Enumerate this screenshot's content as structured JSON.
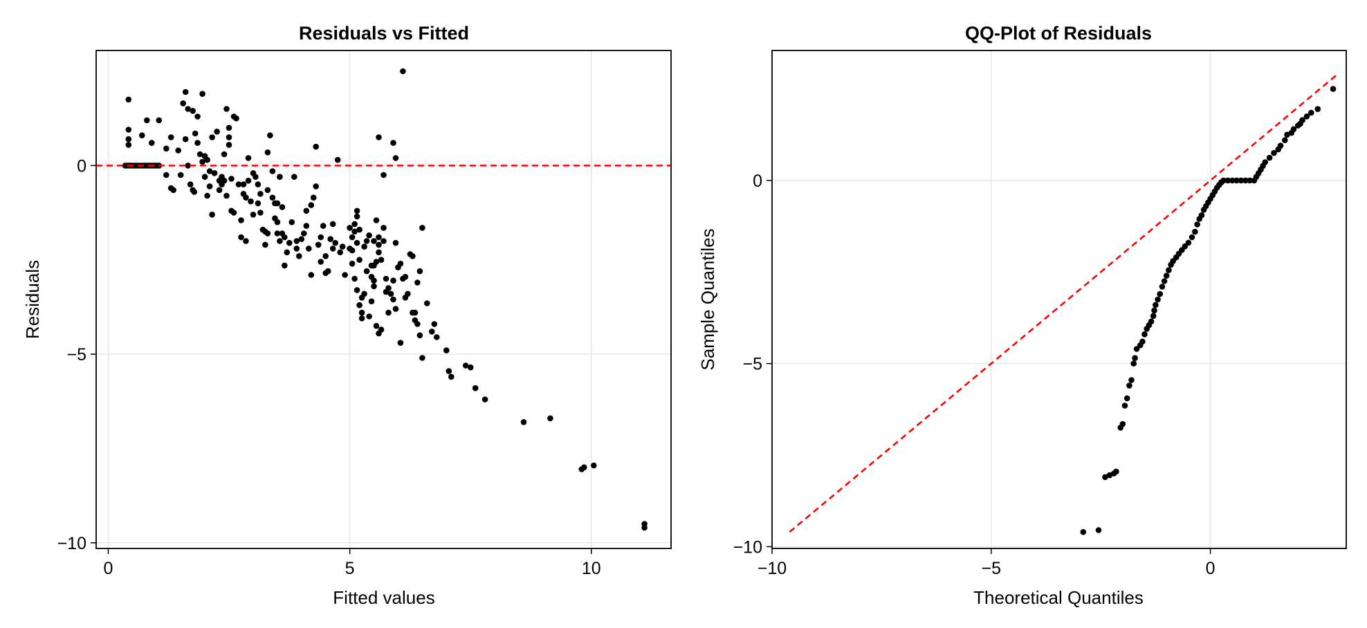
{
  "colors": {
    "points": "#000000",
    "reference_line": "#ff0000",
    "grid": "#e6e6e6"
  },
  "chart_data": [
    {
      "id": "resid",
      "type": "scatter",
      "title": "Residuals vs Fitted",
      "xlabel": "Fitted values",
      "ylabel": "Residuals",
      "xlim": [
        -0.25,
        11.65
      ],
      "ylim": [
        -10.15,
        3.05
      ],
      "xticks": [
        0,
        5,
        10
      ],
      "yticks": [
        0,
        -5,
        -10
      ],
      "grid": true,
      "reference_line": {
        "type": "horizontal",
        "y": 0,
        "style": "dashed",
        "color": "#ff0000"
      },
      "points": [
        [
          0.35,
          0
        ],
        [
          0.4,
          0
        ],
        [
          0.45,
          0
        ],
        [
          0.5,
          0
        ],
        [
          0.55,
          0
        ],
        [
          0.6,
          0
        ],
        [
          0.65,
          0
        ],
        [
          0.7,
          0
        ],
        [
          0.75,
          0
        ],
        [
          0.8,
          0
        ],
        [
          0.85,
          0
        ],
        [
          0.9,
          0
        ],
        [
          0.95,
          0
        ],
        [
          1.0,
          0
        ],
        [
          1.05,
          0
        ],
        [
          0.42,
          1.75
        ],
        [
          0.42,
          0.95
        ],
        [
          0.42,
          0.7
        ],
        [
          0.42,
          0.55
        ],
        [
          0.7,
          0.8
        ],
        [
          0.8,
          1.2
        ],
        [
          0.9,
          0.6
        ],
        [
          1.05,
          1.2
        ],
        [
          1.2,
          0.45
        ],
        [
          1.3,
          0.75
        ],
        [
          1.2,
          -0.25
        ],
        [
          1.3,
          -0.6
        ],
        [
          1.35,
          -0.65
        ],
        [
          1.45,
          0.4
        ],
        [
          1.5,
          -0.25
        ],
        [
          1.55,
          1.65
        ],
        [
          1.6,
          1.95
        ],
        [
          1.65,
          1.5
        ],
        [
          1.6,
          0.7
        ],
        [
          1.65,
          0.0
        ],
        [
          1.7,
          -0.5
        ],
        [
          1.75,
          -0.65
        ],
        [
          1.78,
          -0.7
        ],
        [
          1.75,
          1.45
        ],
        [
          1.8,
          0.85
        ],
        [
          1.85,
          1.3
        ],
        [
          1.85,
          0.6
        ],
        [
          1.9,
          0.3
        ],
        [
          1.95,
          0.1
        ],
        [
          1.95,
          1.9
        ],
        [
          2.0,
          0.25
        ],
        [
          2.05,
          0.15
        ],
        [
          2.0,
          -0.3
        ],
        [
          2.1,
          -0.55
        ],
        [
          2.05,
          -0.8
        ],
        [
          2.1,
          -0.15
        ],
        [
          2.15,
          -1.3
        ],
        [
          2.2,
          -0.2
        ],
        [
          2.15,
          0.75
        ],
        [
          2.25,
          0.9
        ],
        [
          2.3,
          -0.4
        ],
        [
          2.3,
          -0.65
        ],
        [
          2.35,
          -0.5
        ],
        [
          2.35,
          -0.3
        ],
        [
          2.4,
          0.3
        ],
        [
          2.4,
          -0.4
        ],
        [
          2.45,
          -0.8
        ],
        [
          2.45,
          1.5
        ],
        [
          2.5,
          1.0
        ],
        [
          2.5,
          0.55
        ],
        [
          2.5,
          0.75
        ],
        [
          2.55,
          -0.35
        ],
        [
          2.55,
          -1.2
        ],
        [
          2.6,
          1.3
        ],
        [
          2.65,
          1.25
        ],
        [
          2.6,
          -1.25
        ],
        [
          2.7,
          -0.5
        ],
        [
          2.75,
          -1.9
        ],
        [
          2.75,
          -1.45
        ],
        [
          2.8,
          -0.5
        ],
        [
          2.8,
          -0.75
        ],
        [
          2.85,
          -0.85
        ],
        [
          2.85,
          -2.0
        ],
        [
          2.9,
          0.2
        ],
        [
          2.9,
          -0.4
        ],
        [
          2.95,
          -0.95
        ],
        [
          3.0,
          -1.3
        ],
        [
          3.0,
          -0.2
        ],
        [
          3.05,
          -0.3
        ],
        [
          3.1,
          -0.5
        ],
        [
          3.15,
          -0.75
        ],
        [
          3.1,
          -1.0
        ],
        [
          3.15,
          -1.25
        ],
        [
          3.2,
          -1.7
        ],
        [
          3.25,
          -2.1
        ],
        [
          3.25,
          -1.75
        ],
        [
          3.3,
          -0.65
        ],
        [
          3.3,
          -1.8
        ],
        [
          3.3,
          0.35
        ],
        [
          3.35,
          0.8
        ],
        [
          3.4,
          -0.15
        ],
        [
          3.4,
          -0.85
        ],
        [
          3.45,
          -1.0
        ],
        [
          3.45,
          -1.4
        ],
        [
          3.5,
          -1.0
        ],
        [
          3.5,
          -1.5
        ],
        [
          3.5,
          -1.8
        ],
        [
          3.55,
          -2.0
        ],
        [
          3.55,
          -0.3
        ],
        [
          3.6,
          -1.1
        ],
        [
          3.6,
          -1.8
        ],
        [
          3.65,
          -2.65
        ],
        [
          3.65,
          -1.9
        ],
        [
          3.7,
          -2.3
        ],
        [
          3.75,
          -2.05
        ],
        [
          3.8,
          -1.5
        ],
        [
          3.85,
          -0.3
        ],
        [
          3.9,
          -2.0
        ],
        [
          3.9,
          -2.2
        ],
        [
          3.95,
          -2.4
        ],
        [
          4.0,
          -1.95
        ],
        [
          4.05,
          -1.8
        ],
        [
          4.1,
          -1.6
        ],
        [
          4.1,
          -1.2
        ],
        [
          4.15,
          -2.2
        ],
        [
          4.2,
          -2.9
        ],
        [
          4.2,
          -1.05
        ],
        [
          4.25,
          -0.85
        ],
        [
          4.3,
          -0.55
        ],
        [
          4.3,
          0.5
        ],
        [
          4.35,
          -2.1
        ],
        [
          4.4,
          -2.55
        ],
        [
          4.4,
          -1.9
        ],
        [
          4.45,
          -1.6
        ],
        [
          4.5,
          -2.4
        ],
        [
          4.55,
          -2.8
        ],
        [
          4.5,
          -2.85
        ],
        [
          4.6,
          -1.95
        ],
        [
          4.65,
          -1.55
        ],
        [
          4.65,
          -2.2
        ],
        [
          4.7,
          -2.05
        ],
        [
          4.75,
          0.15
        ],
        [
          4.8,
          -2.3
        ],
        [
          4.85,
          -2.15
        ],
        [
          4.9,
          -2.9
        ],
        [
          5.0,
          -1.65
        ],
        [
          5.0,
          -2.2
        ],
        [
          5.05,
          -2.25
        ],
        [
          5.05,
          -1.9
        ],
        [
          5.1,
          -1.55
        ],
        [
          5.1,
          -1.75
        ],
        [
          5.15,
          -2.05
        ],
        [
          5.15,
          -1.2
        ],
        [
          5.15,
          -1.35
        ],
        [
          5.2,
          -1.7
        ],
        [
          5.2,
          -2.5
        ],
        [
          5.25,
          -3.9
        ],
        [
          5.25,
          -3.5
        ],
        [
          5.3,
          -2.15
        ],
        [
          5.35,
          -2.0
        ],
        [
          5.4,
          -1.85
        ],
        [
          5.45,
          -2.65
        ],
        [
          5.5,
          -3.05
        ],
        [
          5.55,
          -1.45
        ],
        [
          5.6,
          -2.1
        ],
        [
          5.6,
          -2.3
        ],
        [
          5.65,
          -2.5
        ],
        [
          5.7,
          -0.25
        ],
        [
          5.7,
          -1.65
        ],
        [
          5.75,
          -3.0
        ],
        [
          5.8,
          -3.25
        ],
        [
          5.85,
          -3.4
        ],
        [
          5.9,
          -3.55
        ],
        [
          5.95,
          -3.8
        ],
        [
          6.0,
          -2.7
        ],
        [
          6.05,
          -2.6
        ],
        [
          6.1,
          -3.0
        ],
        [
          6.15,
          -3.5
        ],
        [
          6.2,
          -3.4
        ],
        [
          6.25,
          -2.35
        ],
        [
          6.3,
          -2.4
        ],
        [
          6.35,
          -3.9
        ],
        [
          6.4,
          -3.1
        ],
        [
          6.45,
          -2.8
        ],
        [
          6.5,
          -1.65
        ],
        [
          5.05,
          -2.6
        ],
        [
          5.1,
          -3.0
        ],
        [
          5.15,
          -3.3
        ],
        [
          5.2,
          -3.7
        ],
        [
          5.25,
          -4.05
        ],
        [
          5.3,
          -3.4
        ],
        [
          5.35,
          -2.8
        ],
        [
          5.4,
          -4.0
        ],
        [
          5.45,
          -3.6
        ],
        [
          5.5,
          -3.2
        ],
        [
          5.55,
          -4.25
        ],
        [
          5.6,
          -4.45
        ],
        [
          5.65,
          -4.35
        ],
        [
          5.7,
          -2.0
        ],
        [
          5.75,
          -3.35
        ],
        [
          5.8,
          -3.9
        ],
        [
          5.9,
          -3.05
        ],
        [
          5.95,
          -2.05
        ],
        [
          5.5,
          -2.0
        ],
        [
          5.5,
          -2.65
        ],
        [
          5.45,
          -2.95
        ],
        [
          5.55,
          -2.55
        ],
        [
          5.6,
          -1.9
        ],
        [
          5.6,
          0.75
        ],
        [
          5.9,
          0.6
        ],
        [
          5.95,
          0.2
        ],
        [
          6.1,
          2.5
        ],
        [
          6.05,
          -4.7
        ],
        [
          6.15,
          -2.95
        ],
        [
          6.3,
          -3.9
        ],
        [
          6.4,
          -4.2
        ],
        [
          6.35,
          -4.1
        ],
        [
          6.45,
          -4.5
        ],
        [
          6.5,
          -5.1
        ],
        [
          6.6,
          -3.65
        ],
        [
          6.7,
          -4.4
        ],
        [
          6.75,
          -4.2
        ],
        [
          6.8,
          -4.55
        ],
        [
          7.0,
          -4.9
        ],
        [
          7.05,
          -5.45
        ],
        [
          7.1,
          -5.6
        ],
        [
          7.4,
          -5.3
        ],
        [
          7.5,
          -5.35
        ],
        [
          7.6,
          -5.9
        ],
        [
          7.8,
          -6.2
        ],
        [
          8.6,
          -6.8
        ],
        [
          9.15,
          -6.7
        ],
        [
          9.8,
          -8.05
        ],
        [
          9.85,
          -8.0
        ],
        [
          10.05,
          -7.95
        ],
        [
          11.1,
          -9.6
        ],
        [
          11.1,
          -9.5
        ]
      ]
    },
    {
      "id": "qq",
      "type": "scatter",
      "title": "QQ-Plot of Residuals",
      "xlabel": "Theoretical Quantiles",
      "ylabel": "Sample Quantiles",
      "xlim": [
        -10.0,
        3.1
      ],
      "ylim": [
        -10.05,
        3.55
      ],
      "xticks": [
        -10,
        -5,
        0
      ],
      "yticks": [
        0,
        -5,
        -10
      ],
      "grid": true,
      "reference_line": {
        "type": "diagonal",
        "from": [
          -9.6,
          -9.6
        ],
        "to": [
          2.9,
          2.9
        ],
        "style": "dashed",
        "color": "#ff0000"
      },
      "points": [
        [
          -2.9,
          -9.6
        ],
        [
          -2.55,
          -9.55
        ],
        [
          -2.4,
          -8.1
        ],
        [
          -2.3,
          -8.05
        ],
        [
          -2.2,
          -8.0
        ],
        [
          -2.15,
          -7.95
        ],
        [
          -2.05,
          -6.75
        ],
        [
          -2.0,
          -6.65
        ],
        [
          -1.95,
          -6.15
        ],
        [
          -1.9,
          -5.95
        ],
        [
          -1.85,
          -5.6
        ],
        [
          -1.8,
          -5.45
        ],
        [
          -1.75,
          -5.0
        ],
        [
          -1.72,
          -4.85
        ],
        [
          -1.68,
          -4.6
        ],
        [
          -1.6,
          -4.5
        ],
        [
          -1.55,
          -4.4
        ],
        [
          -1.5,
          -4.2
        ],
        [
          -1.45,
          -4.05
        ],
        [
          -1.4,
          -3.95
        ],
        [
          -1.35,
          -3.85
        ],
        [
          -1.3,
          -3.7
        ],
        [
          -1.28,
          -3.55
        ],
        [
          -1.25,
          -3.4
        ],
        [
          -1.2,
          -3.25
        ],
        [
          -1.15,
          -3.1
        ],
        [
          -1.1,
          -2.9
        ],
        [
          -1.05,
          -2.75
        ],
        [
          -1.0,
          -2.6
        ],
        [
          -0.95,
          -2.45
        ],
        [
          -0.9,
          -2.3
        ],
        [
          -0.85,
          -2.2
        ],
        [
          -0.78,
          -2.1
        ],
        [
          -0.72,
          -2.0
        ],
        [
          -0.65,
          -1.9
        ],
        [
          -0.58,
          -1.8
        ],
        [
          -0.5,
          -1.7
        ],
        [
          -0.42,
          -1.55
        ],
        [
          -0.35,
          -1.4
        ],
        [
          -0.3,
          -1.2
        ],
        [
          -0.25,
          -1.05
        ],
        [
          -0.2,
          -0.95
        ],
        [
          -0.15,
          -0.8
        ],
        [
          -0.1,
          -0.7
        ],
        [
          -0.05,
          -0.6
        ],
        [
          0.0,
          -0.5
        ],
        [
          0.05,
          -0.4
        ],
        [
          0.1,
          -0.3
        ],
        [
          0.15,
          -0.2
        ],
        [
          0.2,
          -0.12
        ],
        [
          0.25,
          -0.05
        ],
        [
          0.3,
          0.0
        ],
        [
          0.4,
          0.0
        ],
        [
          0.5,
          0.0
        ],
        [
          0.6,
          0.0
        ],
        [
          0.7,
          0.0
        ],
        [
          0.8,
          0.0
        ],
        [
          0.9,
          0.0
        ],
        [
          1.0,
          0.0
        ],
        [
          1.05,
          0.1
        ],
        [
          1.1,
          0.2
        ],
        [
          1.15,
          0.3
        ],
        [
          1.2,
          0.4
        ],
        [
          1.25,
          0.5
        ],
        [
          1.35,
          0.62
        ],
        [
          1.45,
          0.75
        ],
        [
          1.55,
          0.85
        ],
        [
          1.6,
          0.95
        ],
        [
          1.7,
          1.1
        ],
        [
          1.75,
          1.25
        ],
        [
          1.85,
          1.3
        ],
        [
          1.9,
          1.4
        ],
        [
          2.0,
          1.5
        ],
        [
          2.05,
          1.55
        ],
        [
          2.1,
          1.65
        ],
        [
          2.2,
          1.75
        ],
        [
          2.3,
          1.85
        ],
        [
          2.45,
          1.95
        ],
        [
          2.8,
          2.5
        ]
      ]
    }
  ]
}
